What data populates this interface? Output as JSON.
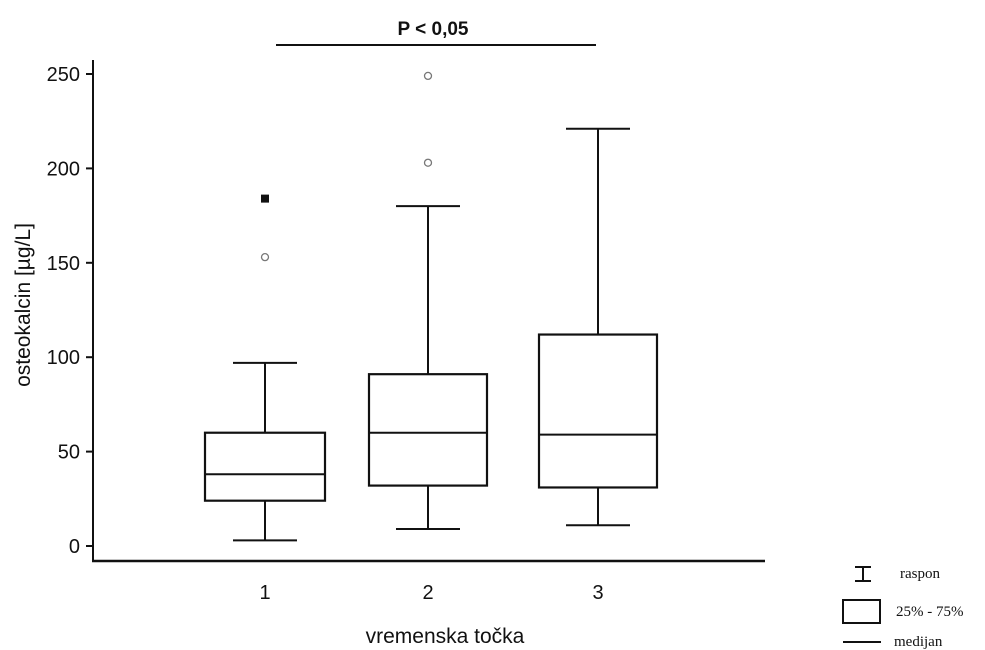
{
  "chart_data": {
    "type": "box",
    "title": "",
    "xlabel": "vremenska točka",
    "ylabel": "osteokalcin [µg/L]",
    "ylim": [
      -8,
      258
    ],
    "y_ticks": [
      0,
      50,
      100,
      150,
      200,
      250
    ],
    "categories": [
      "1",
      "2",
      "3"
    ],
    "boxes": [
      {
        "category": "1",
        "whisker_low": 3,
        "q1": 24,
        "median": 38,
        "q3": 60,
        "whisker_high": 97
      },
      {
        "category": "2",
        "whisker_low": 9,
        "q1": 32,
        "median": 60,
        "q3": 91,
        "whisker_high": 180
      },
      {
        "category": "3",
        "whisker_low": 11,
        "q1": 31,
        "median": 59,
        "q3": 112,
        "whisker_high": 221
      }
    ],
    "outliers": [
      {
        "category": "1",
        "value": 153,
        "marker": "circle"
      },
      {
        "category": "1",
        "value": 184,
        "marker": "square"
      },
      {
        "category": "2",
        "value": 203,
        "marker": "circle"
      },
      {
        "category": "2",
        "value": 249,
        "marker": "circle"
      }
    ],
    "annotation": {
      "text": "P < 0,05",
      "from": "1",
      "to": "3"
    },
    "grid": false,
    "legend": {
      "placement": "bottom-right",
      "items": [
        {
          "symbol": "range",
          "label": "raspon"
        },
        {
          "symbol": "box",
          "label": "25% - 75%"
        },
        {
          "symbol": "line",
          "label": "medijan"
        }
      ]
    }
  }
}
